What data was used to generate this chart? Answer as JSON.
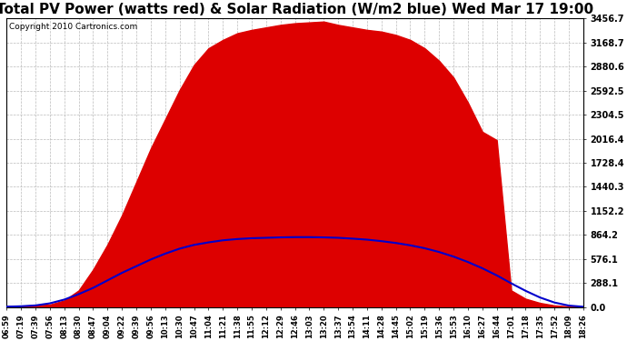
{
  "title": "Total PV Power (watts red) & Solar Radiation (W/m2 blue) Wed Mar 17 19:00",
  "copyright_text": "Copyright 2010 Cartronics.com",
  "y_ticks": [
    0.0,
    288.1,
    576.1,
    864.2,
    1152.2,
    1440.3,
    1728.4,
    2016.4,
    2304.5,
    2592.5,
    2880.6,
    3168.7,
    3456.7
  ],
  "x_labels": [
    "06:59",
    "07:19",
    "07:39",
    "07:56",
    "08:13",
    "08:30",
    "08:47",
    "09:04",
    "09:22",
    "09:39",
    "09:56",
    "10:13",
    "10:30",
    "10:47",
    "11:04",
    "11:21",
    "11:38",
    "11:55",
    "12:12",
    "12:29",
    "12:46",
    "13:03",
    "13:20",
    "13:37",
    "13:54",
    "14:11",
    "14:28",
    "14:45",
    "15:02",
    "15:19",
    "15:36",
    "15:53",
    "16:10",
    "16:27",
    "16:44",
    "17:01",
    "17:18",
    "17:35",
    "17:52",
    "18:09",
    "18:26"
  ],
  "background_color": "#ffffff",
  "plot_bg_color": "#ffffff",
  "grid_color": "#bbbbbb",
  "fill_color": "#dd0000",
  "line_color": "#0000cc",
  "title_fontsize": 11,
  "y_max": 3456.7,
  "y_min": 0.0,
  "pv_power": [
    10,
    15,
    20,
    30,
    80,
    200,
    450,
    750,
    1100,
    1500,
    1900,
    2250,
    2600,
    2900,
    3100,
    3200,
    3280,
    3320,
    3350,
    3380,
    3400,
    3410,
    3420,
    3380,
    3350,
    3320,
    3300,
    3260,
    3200,
    3100,
    2950,
    2750,
    2450,
    2100,
    2000,
    200,
    100,
    50,
    20,
    8,
    2
  ],
  "solar_rad": [
    5,
    10,
    20,
    45,
    90,
    155,
    230,
    320,
    410,
    490,
    570,
    640,
    700,
    745,
    775,
    800,
    815,
    825,
    830,
    835,
    838,
    838,
    835,
    830,
    820,
    808,
    790,
    768,
    740,
    705,
    660,
    605,
    540,
    465,
    380,
    285,
    195,
    115,
    55,
    18,
    4
  ]
}
